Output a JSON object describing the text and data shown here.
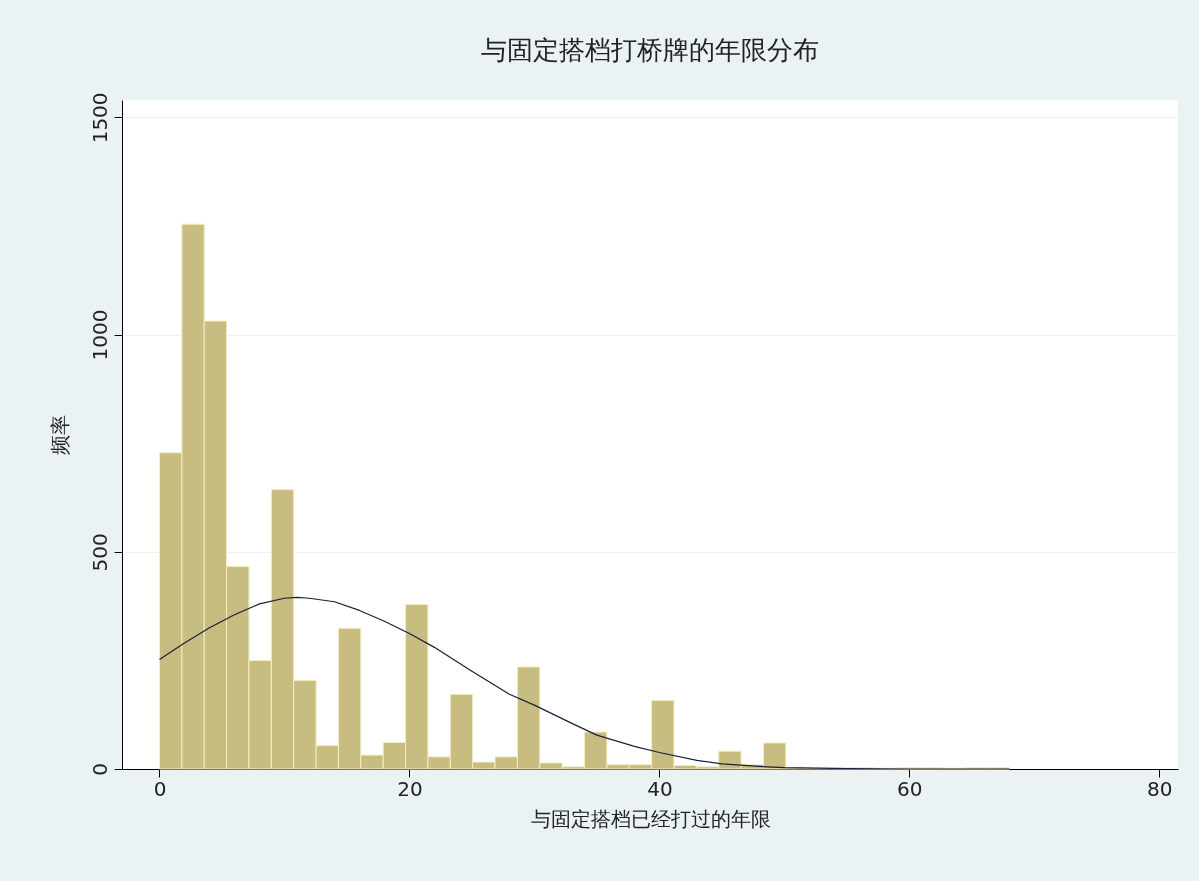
{
  "chart_data": {
    "type": "histogram",
    "title": "与固定搭档打桥牌的年限分布",
    "xlabel": "与固定搭档已经打过的年限",
    "ylabel": "频率",
    "bins": [
      0,
      1.79,
      3.58,
      5.37,
      7.16,
      8.95,
      10.74,
      12.53,
      14.32,
      16.11,
      17.9,
      19.69,
      21.48,
      23.27,
      25.06,
      26.85,
      28.64,
      30.43,
      32.22,
      34.01,
      35.8,
      37.59,
      39.38,
      41.17,
      42.96,
      44.75,
      46.54,
      48.33,
      50.12,
      51.91,
      53.7,
      55.49,
      57.28,
      59.07,
      60.86,
      62.65,
      64.44,
      66.23,
      68.02
    ],
    "values": [
      728,
      1254,
      1031,
      466,
      250,
      643,
      204,
      54,
      324,
      32,
      61,
      379,
      28,
      172,
      16,
      28,
      235,
      14,
      5,
      85,
      10,
      10,
      158,
      8,
      5,
      41,
      10,
      60,
      4,
      3,
      3,
      3,
      2,
      3,
      3,
      2,
      3,
      3
    ],
    "color": "#c8bd80",
    "series": [
      {
        "type": "line",
        "color": "#1a1f3a",
        "x": [
          0,
          2,
          4,
          6,
          8,
          10,
          11,
          12,
          14,
          16,
          18,
          20,
          22,
          25,
          28,
          30,
          33,
          35,
          38,
          40,
          43,
          45,
          48,
          50,
          55,
          60,
          68
        ],
        "values": [
          252,
          290,
          325,
          355,
          380,
          393,
          395,
          393,
          385,
          365,
          340,
          312,
          280,
          225,
          172,
          147,
          105,
          78,
          52,
          38,
          20,
          12,
          6,
          3,
          1,
          0,
          0
        ]
      }
    ],
    "xlim": [
      -3,
      81.5
    ],
    "ylim": [
      0,
      1540
    ],
    "xticks": [
      0,
      20,
      40,
      60,
      80
    ],
    "yticks": [
      0,
      500,
      1000,
      1500
    ],
    "grid": "y"
  }
}
